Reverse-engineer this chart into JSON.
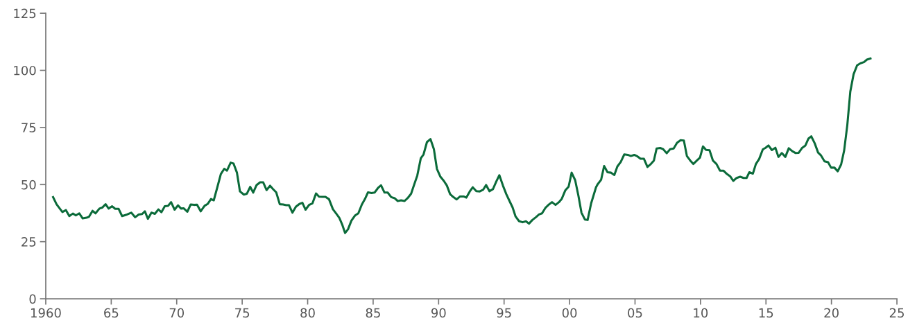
{
  "chart_data": {
    "type": "line",
    "x": [
      1960.56,
      1960.83,
      1961.27,
      1961.54,
      1961.8,
      1962.07,
      1962.3,
      1962.56,
      1962.82,
      1963.12,
      1963.3,
      1963.57,
      1963.8,
      1964.1,
      1964.31,
      1964.57,
      1964.8,
      1965.07,
      1965.3,
      1965.56,
      1965.83,
      1966.21,
      1966.53,
      1966.83,
      1967.1,
      1967.36,
      1967.57,
      1967.8,
      1968.07,
      1968.33,
      1968.6,
      1968.83,
      1969.09,
      1969.34,
      1969.57,
      1969.84,
      1970.1,
      1970.33,
      1970.54,
      1970.81,
      1971.07,
      1971.33,
      1971.55,
      1971.83,
      1972.13,
      1972.36,
      1972.62,
      1972.83,
      1973.1,
      1973.37,
      1973.63,
      1973.84,
      1974.12,
      1974.34,
      1974.6,
      1974.83,
      1975.13,
      1975.36,
      1975.61,
      1975.84,
      1976.1,
      1976.37,
      1976.6,
      1976.86,
      1977.13,
      1977.34,
      1977.6,
      1977.87,
      1978.13,
      1978.36,
      1978.57,
      1978.84,
      1979.1,
      1979.37,
      1979.6,
      1979.84,
      1980.11,
      1980.37,
      1980.64,
      1980.87,
      1981.13,
      1981.36,
      1981.63,
      1981.93,
      1982.19,
      1982.42,
      1982.63,
      1982.86,
      1983.08,
      1983.34,
      1983.61,
      1983.87,
      1984.14,
      1984.37,
      1984.61,
      1984.88,
      1985.11,
      1985.37,
      1985.6,
      1985.87,
      1986.11,
      1986.38,
      1986.65,
      1986.88,
      1987.14,
      1987.4,
      1987.67,
      1987.9,
      1988.14,
      1988.37,
      1988.64,
      1988.85,
      1989.11,
      1989.38,
      1989.64,
      1989.87,
      1990.14,
      1990.4,
      1990.63,
      1990.88,
      1991.11,
      1991.38,
      1991.64,
      1991.91,
      1992.12,
      1992.38,
      1992.61,
      1992.88,
      1993.14,
      1993.41,
      1993.63,
      1993.88,
      1994.15,
      1994.41,
      1994.64,
      1994.91,
      1995.17,
      1995.44,
      1995.65,
      1995.88,
      1996.14,
      1996.41,
      1996.67,
      1996.9,
      1997.16,
      1997.43,
      1997.67,
      1997.9,
      1998.17,
      1998.43,
      1998.66,
      1998.93,
      1999.19,
      1999.41,
      1999.67,
      1999.93,
      2000.16,
      2000.43,
      2000.68,
      2000.91,
      2001.17,
      2001.38,
      2001.65,
      2002.02,
      2002.14,
      2002.41,
      2002.64,
      2002.9,
      2003.17,
      2003.42,
      2003.65,
      2003.91,
      2004.18,
      2004.45,
      2004.68,
      2004.94,
      2005.19,
      2005.42,
      2005.68,
      2005.95,
      2006.21,
      2006.44,
      2006.65,
      2006.92,
      2007.15,
      2007.42,
      2007.68,
      2007.95,
      2008.21,
      2008.48,
      2008.73,
      2008.96,
      2009.22,
      2009.45,
      2009.72,
      2009.96,
      2010.19,
      2010.42,
      2010.69,
      2010.95,
      2011.22,
      2011.49,
      2011.75,
      2012.02,
      2012.27,
      2012.5,
      2012.76,
      2013.03,
      2013.29,
      2013.52,
      2013.73,
      2014.0,
      2014.23,
      2014.48,
      2014.76,
      2014.97,
      2015.19,
      2015.45,
      2015.72,
      2015.95,
      2016.21,
      2016.48,
      2016.74,
      2017.01,
      2017.27,
      2017.5,
      2017.77,
      2018.01,
      2018.24,
      2018.46,
      2018.72,
      2018.98,
      2019.21,
      2019.47,
      2019.74,
      2019.97,
      2020.23,
      2020.48,
      2020.74,
      2020.97,
      2021.21,
      2021.44,
      2021.69,
      2021.96,
      2022.22,
      2022.48,
      2022.71,
      2022.98
    ],
    "series": [
      {
        "color": "#0b6b3a",
        "values": [
          44.5,
          41.3,
          38.0,
          38.8,
          36.2,
          37.3,
          36.5,
          37.4,
          35.2,
          35.5,
          35.9,
          38.5,
          37.4,
          39.5,
          39.9,
          41.4,
          39.5,
          40.5,
          39.4,
          39.4,
          36.2,
          36.9,
          37.7,
          35.7,
          36.9,
          37.1,
          38.3,
          35.0,
          37.7,
          37.2,
          39.1,
          37.9,
          40.5,
          40.7,
          42.3,
          39.0,
          40.9,
          39.5,
          39.6,
          38.1,
          41.3,
          41.1,
          41.2,
          38.3,
          40.7,
          41.5,
          43.7,
          43.1,
          48.8,
          54.6,
          56.9,
          56.1,
          59.6,
          59.2,
          55.2,
          47.0,
          45.6,
          46.0,
          49.0,
          46.5,
          49.8,
          51.0,
          51.0,
          47.6,
          49.5,
          48.1,
          46.6,
          41.4,
          41.3,
          41.0,
          41.0,
          37.7,
          40.3,
          41.5,
          42.0,
          39.0,
          41.1,
          41.8,
          46.1,
          44.7,
          44.6,
          44.6,
          43.6,
          39.2,
          37.2,
          35.4,
          32.6,
          28.8,
          30.4,
          34.2,
          36.4,
          37.4,
          41.3,
          43.6,
          46.6,
          46.3,
          46.5,
          48.5,
          49.7,
          46.5,
          46.5,
          44.5,
          44.0,
          42.8,
          43.1,
          42.8,
          44.3,
          46.0,
          50.1,
          53.9,
          61.5,
          63.2,
          68.6,
          69.9,
          65.5,
          56.9,
          53.4,
          51.6,
          49.6,
          45.8,
          44.6,
          43.5,
          44.8,
          44.8,
          44.3,
          47.0,
          48.8,
          47.1,
          47.0,
          47.8,
          49.8,
          47.1,
          48.0,
          51.4,
          54.1,
          49.6,
          45.8,
          42.5,
          40.0,
          36.0,
          34.0,
          33.5,
          33.9,
          32.9,
          34.5,
          35.7,
          36.9,
          37.4,
          39.9,
          41.3,
          42.3,
          41.1,
          42.3,
          43.8,
          47.4,
          49.1,
          55.2,
          51.9,
          45.0,
          37.7,
          34.7,
          34.5,
          41.8,
          48.8,
          50.1,
          52.1,
          58.1,
          55.4,
          55.2,
          54.2,
          57.9,
          59.9,
          63.2,
          63.0,
          62.5,
          63.0,
          62.3,
          61.3,
          61.3,
          57.7,
          59.0,
          60.5,
          65.8,
          66.0,
          65.5,
          63.7,
          65.5,
          65.8,
          68.3,
          69.4,
          69.3,
          62.5,
          60.5,
          59.0,
          60.5,
          61.8,
          66.7,
          65.2,
          65.0,
          60.5,
          59.0,
          56.1,
          56.1,
          54.6,
          53.6,
          51.6,
          52.9,
          53.4,
          52.9,
          52.9,
          55.4,
          54.8,
          59.0,
          61.2,
          65.4,
          66.1,
          67.1,
          65.1,
          66.1,
          62.1,
          63.8,
          62.1,
          65.9,
          64.6,
          63.8,
          63.9,
          66.1,
          67.1,
          70.1,
          71.1,
          68.1,
          64.0,
          62.7,
          60.2,
          59.8,
          57.4,
          57.4,
          55.8,
          58.8,
          64.9,
          76.0,
          90.7,
          98.3,
          102.2,
          103.1,
          103.6,
          104.7,
          105.2
        ]
      }
    ],
    "xlim": [
      1960,
      2025
    ],
    "xticks": [
      1960,
      {
        "value": 1965,
        "label": "65"
      },
      {
        "value": 1970,
        "label": "70"
      },
      {
        "value": 1975,
        "label": "75"
      },
      {
        "value": 1980,
        "label": "80"
      },
      {
        "value": 1985,
        "label": "85"
      },
      {
        "value": 1990,
        "label": "90"
      },
      {
        "value": 1995,
        "label": "95"
      },
      {
        "value": 2000,
        "label": "00"
      },
      {
        "value": 2005,
        "label": "05"
      },
      {
        "value": 2010,
        "label": "10"
      },
      {
        "value": 2015,
        "label": "15"
      },
      {
        "value": 2020,
        "label": "20"
      },
      {
        "value": 2025,
        "label": "25"
      }
    ],
    "ylim": [
      0,
      125
    ],
    "yticks": [
      0,
      25,
      50,
      75,
      100,
      125
    ],
    "grid": false,
    "marker": "none",
    "line_style": "solid"
  }
}
